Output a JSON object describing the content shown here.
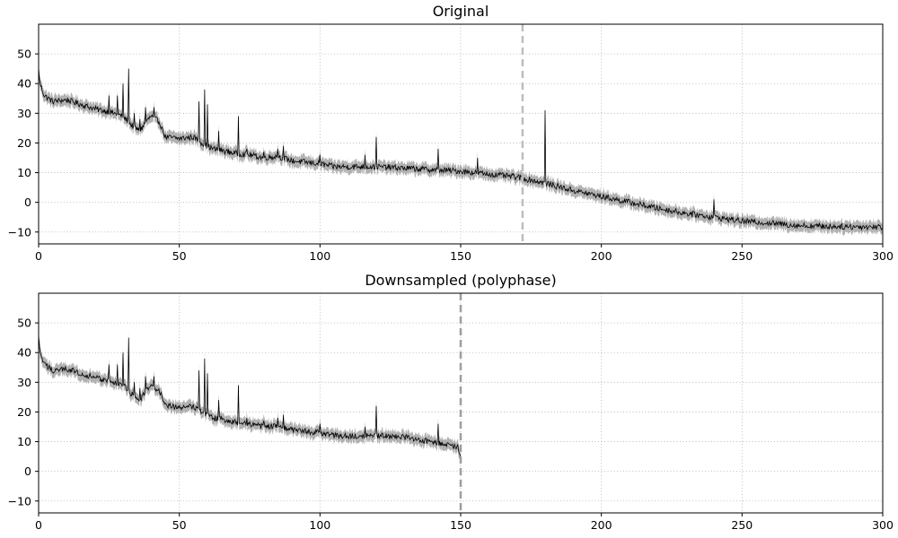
{
  "chart_data": [
    {
      "type": "line",
      "title": "Original",
      "xlabel": "",
      "ylabel": "",
      "xlim": [
        0,
        300
      ],
      "ylim": [
        -14,
        60
      ],
      "grid": true,
      "grid_style": "dotted",
      "x_ticks": [
        0,
        50,
        100,
        150,
        200,
        250,
        300
      ],
      "x_tick_labels": [
        "0",
        "50",
        "100",
        "150",
        "200",
        "250",
        "300"
      ],
      "y_ticks": [
        -10,
        0,
        10,
        20,
        30,
        40,
        50
      ],
      "y_tick_labels": [
        "−10",
        "0",
        "10",
        "20",
        "30",
        "40",
        "50"
      ],
      "colors": {
        "line": "#000000",
        "band": "#a9a9a9",
        "marker": "#bdbdbd",
        "grid": "#b0b0b0"
      },
      "vline": {
        "x": 172,
        "style": "dashed",
        "color": "#bdbdbd"
      },
      "x_end": 300,
      "band_halfwidth": 1.6,
      "trend_knots": [
        [
          0,
          45
        ],
        [
          0.5,
          40
        ],
        [
          2,
          36
        ],
        [
          5,
          34
        ],
        [
          10,
          34.5
        ],
        [
          15,
          33
        ],
        [
          20,
          31.5
        ],
        [
          25,
          30.5
        ],
        [
          30,
          29
        ],
        [
          33,
          26
        ],
        [
          36,
          24
        ],
        [
          38,
          27
        ],
        [
          40,
          29
        ],
        [
          43,
          27
        ],
        [
          45,
          22
        ],
        [
          50,
          21.5
        ],
        [
          55,
          22
        ],
        [
          58,
          20
        ],
        [
          62,
          18
        ],
        [
          65,
          17.5
        ],
        [
          70,
          16.5
        ],
        [
          75,
          16
        ],
        [
          80,
          15
        ],
        [
          85,
          15.5
        ],
        [
          90,
          14
        ],
        [
          95,
          13.5
        ],
        [
          100,
          13
        ],
        [
          105,
          12
        ],
        [
          110,
          12
        ],
        [
          120,
          12
        ],
        [
          130,
          11.5
        ],
        [
          140,
          11
        ],
        [
          150,
          10.5
        ],
        [
          160,
          9.5
        ],
        [
          170,
          8.5
        ],
        [
          180,
          6.5
        ],
        [
          190,
          4
        ],
        [
          200,
          2
        ],
        [
          210,
          0
        ],
        [
          220,
          -2
        ],
        [
          230,
          -3.7
        ],
        [
          240,
          -5
        ],
        [
          250,
          -6.3
        ],
        [
          260,
          -7
        ],
        [
          270,
          -7.8
        ],
        [
          280,
          -8.1
        ],
        [
          290,
          -8.2
        ],
        [
          300,
          -8.3
        ]
      ],
      "spikes": [
        [
          25,
          36
        ],
        [
          28,
          36
        ],
        [
          30,
          40
        ],
        [
          32,
          45
        ],
        [
          34,
          30
        ],
        [
          36,
          28
        ],
        [
          38,
          32
        ],
        [
          41,
          32
        ],
        [
          57,
          34
        ],
        [
          59,
          38
        ],
        [
          60,
          33
        ],
        [
          64,
          24
        ],
        [
          71,
          29
        ],
        [
          74,
          18
        ],
        [
          80,
          17
        ],
        [
          85,
          18
        ],
        [
          87,
          19
        ],
        [
          100,
          16
        ],
        [
          116,
          16
        ],
        [
          120,
          22
        ],
        [
          142,
          18
        ],
        [
          156,
          15
        ],
        [
          180,
          31
        ],
        [
          240,
          1
        ]
      ]
    },
    {
      "type": "line",
      "title": "Downsampled (polyphase)",
      "xlabel": "",
      "ylabel": "",
      "xlim": [
        0,
        300
      ],
      "ylim": [
        -14,
        60
      ],
      "grid": true,
      "grid_style": "dotted",
      "x_ticks": [
        0,
        50,
        100,
        150,
        200,
        250,
        300
      ],
      "x_tick_labels": [
        "0",
        "50",
        "100",
        "150",
        "200",
        "250",
        "300"
      ],
      "y_ticks": [
        -10,
        0,
        10,
        20,
        30,
        40,
        50
      ],
      "y_tick_labels": [
        "−10",
        "0",
        "10",
        "20",
        "30",
        "40",
        "50"
      ],
      "colors": {
        "line": "#000000",
        "band": "#a9a9a9",
        "marker": "#9e9e9e",
        "grid": "#b0b0b0"
      },
      "vline": {
        "x": 150,
        "style": "dashed",
        "color": "#9e9e9e"
      },
      "x_end": 150,
      "band_halfwidth": 1.6,
      "trend_knots": [
        [
          0,
          45
        ],
        [
          0.5,
          40
        ],
        [
          2,
          36
        ],
        [
          5,
          34
        ],
        [
          10,
          34.5
        ],
        [
          15,
          33
        ],
        [
          20,
          31.5
        ],
        [
          25,
          30.5
        ],
        [
          30,
          29
        ],
        [
          33,
          26
        ],
        [
          36,
          24
        ],
        [
          38,
          27
        ],
        [
          40,
          29
        ],
        [
          43,
          27
        ],
        [
          45,
          22
        ],
        [
          50,
          21.5
        ],
        [
          55,
          22
        ],
        [
          58,
          20
        ],
        [
          62,
          18
        ],
        [
          65,
          17.5
        ],
        [
          70,
          16.5
        ],
        [
          75,
          16
        ],
        [
          80,
          15
        ],
        [
          85,
          15.5
        ],
        [
          90,
          14
        ],
        [
          95,
          13.5
        ],
        [
          100,
          13
        ],
        [
          105,
          12
        ],
        [
          110,
          12
        ],
        [
          120,
          12
        ],
        [
          130,
          11.5
        ],
        [
          140,
          10
        ],
        [
          145,
          9
        ],
        [
          149,
          8
        ],
        [
          150,
          4
        ]
      ],
      "spikes": [
        [
          25,
          36
        ],
        [
          28,
          36
        ],
        [
          30,
          40
        ],
        [
          32,
          45
        ],
        [
          34,
          30
        ],
        [
          36,
          28
        ],
        [
          38,
          32
        ],
        [
          41,
          32
        ],
        [
          57,
          34
        ],
        [
          59,
          38
        ],
        [
          60,
          33
        ],
        [
          64,
          24
        ],
        [
          71,
          29
        ],
        [
          74,
          18
        ],
        [
          80,
          17
        ],
        [
          85,
          18
        ],
        [
          87,
          19
        ],
        [
          100,
          16
        ],
        [
          116,
          15
        ],
        [
          120,
          22
        ],
        [
          142,
          16
        ]
      ]
    }
  ]
}
